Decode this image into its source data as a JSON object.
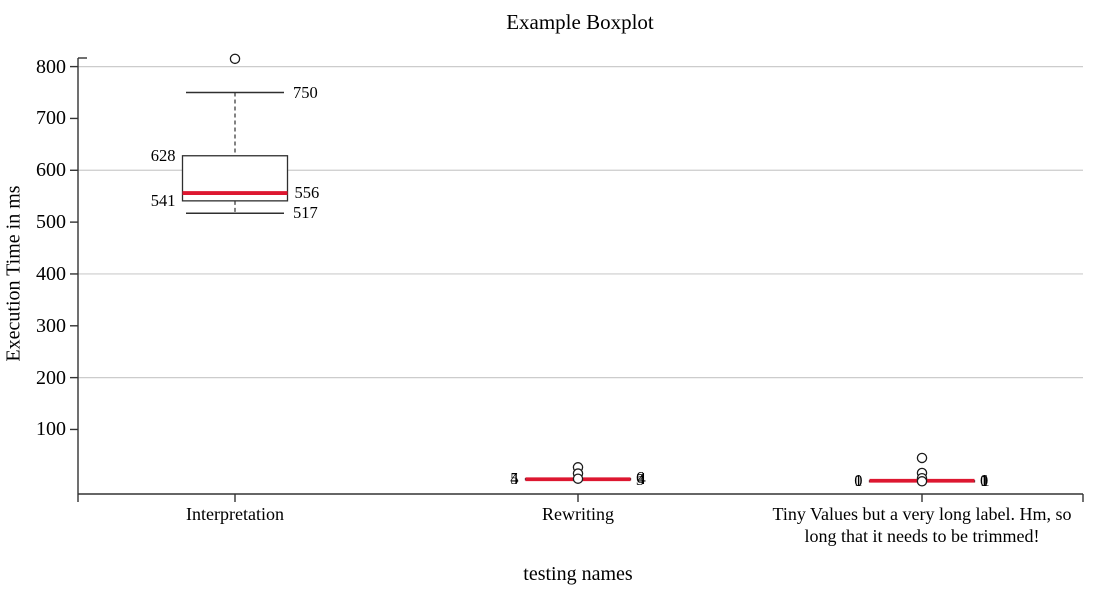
{
  "title": "Example Boxplot",
  "chart_data": {
    "type": "boxplot",
    "title": "Example Boxplot",
    "xlabel": "testing names",
    "ylabel": "Execution Time in ms",
    "categories": [
      "Interpretation",
      "Rewriting",
      "Tiny Values but a very long label. Hm, so long that it needs to be trimmed!"
    ],
    "yticks": [
      100,
      200,
      300,
      400,
      500,
      600,
      700,
      800
    ],
    "grid_values": [
      200,
      400,
      600,
      800
    ],
    "ylim": [
      0,
      815
    ],
    "legend": "none",
    "grid": "horizontal-only",
    "series": [
      {
        "category": "Interpretation",
        "low": 517,
        "q1": 541,
        "median": 556,
        "q3": 628,
        "high": 750,
        "outliers": [
          815
        ]
      },
      {
        "category": "Rewriting",
        "low": 3,
        "q1": 4,
        "median": 4,
        "q3": 5,
        "high": 6,
        "outliers": [
          27,
          15,
          5
        ]
      },
      {
        "category": "Tiny Values but a very long label. Hm, so long that it needs to be trimmed!",
        "low": 0,
        "q1": 0,
        "median": 1,
        "q3": 1,
        "high": 1,
        "outliers": [
          45,
          16,
          6,
          0
        ]
      }
    ],
    "colors": {
      "median_line": "#dd1730",
      "box_stroke": "#2f2f2f",
      "whisker": "#2f2f2f",
      "axis": "#333333",
      "gridline": "#cccccc",
      "text": "#000000",
      "outlier_fill": "#ffffff"
    }
  }
}
